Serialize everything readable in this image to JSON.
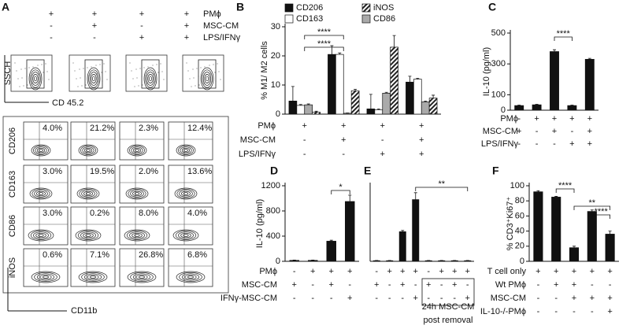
{
  "panel_a": {
    "letter": "A",
    "treatments": [
      {
        "label": "PMϕ",
        "signs": [
          "+",
          "+",
          "+",
          "+"
        ]
      },
      {
        "label": "MSC-CM",
        "signs": [
          "-",
          "+",
          "-",
          "+"
        ]
      },
      {
        "label": "LPS/IFNγ",
        "signs": [
          "-",
          "-",
          "+",
          "+"
        ]
      }
    ],
    "ssch": "SSCH",
    "cd45": "CD 45.2",
    "markers": [
      "CD206",
      "CD163",
      "CD86",
      "iNOS"
    ],
    "percents": [
      [
        "4.0%",
        "21.2%",
        "2.3%",
        "12.4%"
      ],
      [
        "3.0%",
        "19.5%",
        "2.0%",
        "13.6%"
      ],
      [
        "3.0%",
        "0.2%",
        "8.0%",
        "4.0%"
      ],
      [
        "0.6%",
        "7.1%",
        "26.8%",
        "6.8%"
      ]
    ],
    "cd11b": "CD11b"
  },
  "chart_data": [
    {
      "type": "bar",
      "letter": "B",
      "ylabel": "% M1/ M2 cells",
      "ylim": [
        0,
        30
      ],
      "yticks": [
        0,
        10,
        20,
        30
      ],
      "series": [
        {
          "name": "CD206",
          "color": "#111111",
          "values": [
            4.5,
            20.5,
            1.8,
            11
          ],
          "errors": [
            5,
            3,
            5,
            2
          ]
        },
        {
          "name": "CD163",
          "color": "#ffffff",
          "values": [
            3,
            20.5,
            1.5,
            12
          ],
          "errors": [
            0.3,
            0.5,
            0.3,
            0.3
          ]
        },
        {
          "name": "CD86",
          "color": "#aaaaaa",
          "values": [
            3.2,
            0.3,
            7.2,
            4.2
          ],
          "errors": [
            0.3,
            0.1,
            0.3,
            0.3
          ]
        },
        {
          "name": "iNOS",
          "color": "#333333",
          "hatch": true,
          "values": [
            0.7,
            8,
            23,
            5.5
          ],
          "errors": [
            0.3,
            0.5,
            4,
            1
          ]
        }
      ],
      "annotations": [
        "****",
        "****"
      ],
      "rows": [
        {
          "label": "PMϕ",
          "signs": [
            "+",
            "+",
            "+",
            "+"
          ]
        },
        {
          "label": "MSC-CM",
          "signs": [
            "-",
            "+",
            "-",
            "+"
          ]
        },
        {
          "label": "LPS/IFNγ",
          "signs": [
            "-",
            "-",
            "+",
            "+"
          ]
        }
      ]
    },
    {
      "type": "bar",
      "letter": "C",
      "ylabel": "IL-10 (pg/ml)",
      "ylim": [
        0,
        500
      ],
      "yticks": [
        0,
        100,
        300,
        500
      ],
      "color": "#111111",
      "values": [
        30,
        35,
        380,
        30,
        330
      ],
      "errors": [
        3,
        3,
        12,
        3,
        6
      ],
      "annotations": [
        "****"
      ],
      "rows": [
        {
          "label": "PMϕ",
          "signs": [
            "-",
            "+",
            "+",
            "+",
            "+"
          ]
        },
        {
          "label": "MSC-CM",
          "signs": [
            "+",
            "-",
            "+",
            "-",
            "+"
          ]
        },
        {
          "label": "LPS/IFNγ",
          "signs": [
            "-",
            "-",
            "-",
            "+",
            "+"
          ]
        }
      ]
    },
    {
      "type": "bar",
      "letter": "D",
      "ylabel": "IL-10 (pg/ml)",
      "ylim": [
        0,
        1200
      ],
      "yticks": [
        0,
        400,
        800,
        1200
      ],
      "color": "#111111",
      "values": [
        15,
        15,
        320,
        950
      ],
      "errors": [
        5,
        5,
        15,
        100
      ],
      "annotations": [
        "*"
      ],
      "rows": [
        {
          "label": "PMϕ",
          "signs": [
            "-",
            "+",
            "+",
            "+"
          ]
        },
        {
          "label": "MSC-CM",
          "signs": [
            "+",
            "-",
            "+",
            "-"
          ]
        },
        {
          "label": "IFNγ-MSC-CM",
          "signs": [
            "-",
            "-",
            "-",
            "+"
          ]
        }
      ]
    },
    {
      "type": "bar",
      "letter": "E",
      "ylim": [
        0,
        1200
      ],
      "color": "#111111",
      "values": [
        10,
        10,
        470,
        980,
        10,
        10,
        10,
        10
      ],
      "errors": [
        3,
        3,
        20,
        110,
        3,
        3,
        3,
        3
      ],
      "annotations": [
        "**"
      ],
      "note": [
        "24h MSC-CM",
        "post removal"
      ],
      "rows": [
        {
          "signs": [
            "-",
            "+",
            "+",
            "+",
            "-",
            "+",
            "+",
            "+"
          ]
        },
        {
          "signs": [
            "+",
            "-",
            "+",
            "-",
            "+",
            "-",
            "+",
            "-"
          ]
        },
        {
          "signs": [
            "-",
            "-",
            "-",
            "+",
            "-",
            "-",
            "-",
            "+"
          ]
        }
      ]
    },
    {
      "type": "bar",
      "letter": "F",
      "ylabel": "% CD3⁺Ki67⁺",
      "ylim": [
        0,
        100
      ],
      "yticks": [
        0,
        20,
        40,
        60,
        80,
        100
      ],
      "color": "#111111",
      "values": [
        92,
        85,
        18,
        66,
        36
      ],
      "errors": [
        1.5,
        1,
        2,
        2,
        4
      ],
      "annotations": [
        "****",
        "**",
        "****"
      ],
      "rows": [
        {
          "label": "T cell only",
          "signs": [
            "+",
            "+",
            "+",
            "+",
            "+"
          ]
        },
        {
          "label": "Wt PMϕ",
          "signs": [
            "-",
            "+",
            "+",
            "-",
            "-"
          ]
        },
        {
          "label": "MSC-CM",
          "signs": [
            "-",
            "-",
            "+",
            "+",
            "+"
          ]
        },
        {
          "label": "IL-10-/-PMϕ",
          "signs": [
            "-",
            "-",
            "-",
            "-",
            "+"
          ]
        }
      ]
    }
  ]
}
